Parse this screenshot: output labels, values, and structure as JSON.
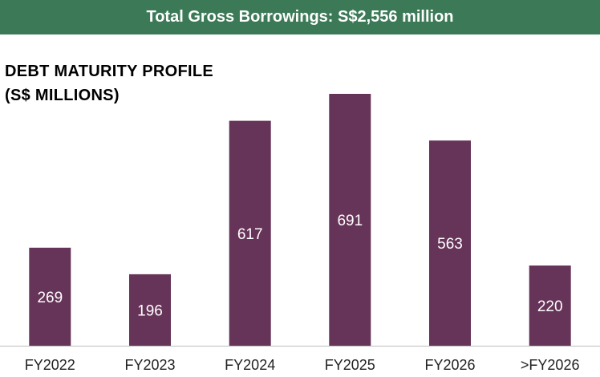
{
  "banner": {
    "text": "Total Gross Borrowings: S$2,556 million",
    "color": "#3c7a57"
  },
  "chart_data": {
    "type": "bar",
    "title": "DEBT MATURITY PROFILE",
    "subtitle": "(S$ MILLIONS)",
    "categories": [
      "FY2022",
      "FY2023",
      "FY2024",
      "FY2025",
      "FY2026",
      ">FY2026"
    ],
    "values": [
      269,
      196,
      617,
      691,
      563,
      220
    ],
    "value_labels": [
      "269",
      "196",
      "617",
      "691",
      "563",
      "220"
    ],
    "ylim": [
      0,
      700
    ],
    "grid": false,
    "legend": "none",
    "bar_color": "#673459"
  }
}
